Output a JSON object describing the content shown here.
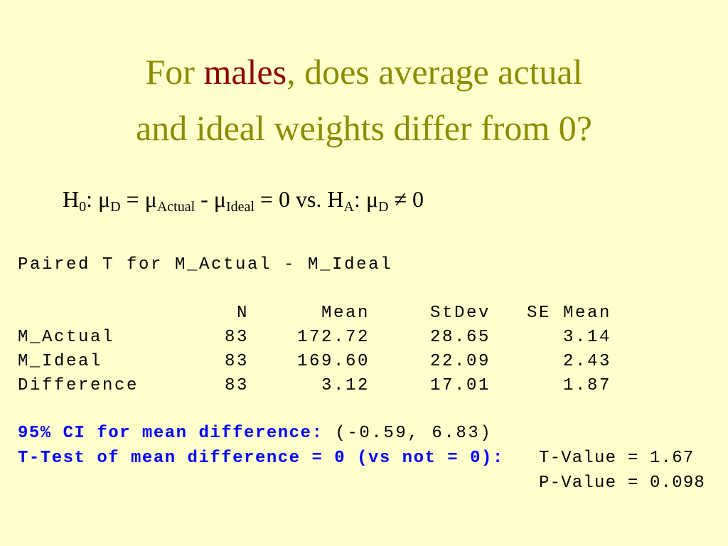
{
  "title": {
    "before": "For ",
    "highlight": "males",
    "after": ", does average actual",
    "line2": "and ideal weights differ from 0?"
  },
  "hypothesis": [
    {
      "text": "H"
    },
    {
      "text": "0",
      "sub": true
    },
    {
      "text": ": μ"
    },
    {
      "text": "D",
      "sub": true
    },
    {
      "text": " = μ"
    },
    {
      "text": "Actual",
      "sub": true
    },
    {
      "text": " - μ"
    },
    {
      "text": "Ideal",
      "sub": true
    },
    {
      "text": " = 0 vs. H"
    },
    {
      "text": "A",
      "sub": true
    },
    {
      "text": ": μ"
    },
    {
      "text": "D",
      "sub": true
    },
    {
      "text": " ≠ 0"
    }
  ],
  "output": {
    "heading": "Paired T for M_Actual - M_Ideal",
    "columns": [
      "N",
      "Mean",
      "StDev",
      "SE Mean"
    ],
    "rows": [
      [
        "M_Actual",
        "83",
        "172.72",
        "28.65",
        "3.14"
      ],
      [
        "M_Ideal",
        "83",
        "169.60",
        "22.09",
        "2.43"
      ],
      [
        "Difference",
        "83",
        "3.12",
        "17.01",
        "1.87"
      ]
    ],
    "ci": {
      "label": "95% CI for mean difference:",
      "value": "(-0.59, 6.83)"
    },
    "test": {
      "label": "T-Test of mean difference = 0 (vs not = 0):",
      "t_value": "T-Value = 1.67",
      "p_value": "P-Value = 0.098"
    }
  }
}
